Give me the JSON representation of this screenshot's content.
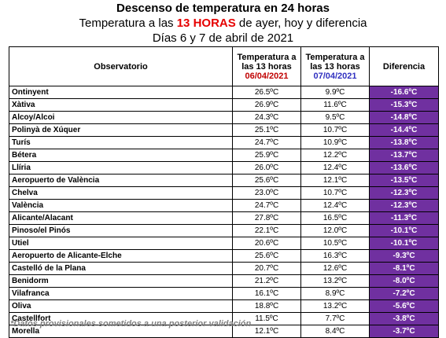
{
  "header": {
    "title": "Descenso de temperatura en 24 horas",
    "subtitle_pre": "Temperatura a las ",
    "subtitle_highlight": "13 HORAS",
    "subtitle_post": " de ayer, hoy y diferencia",
    "date_line": "Días 6 y 7 de abril de 2021",
    "highlight_color": "#e60000"
  },
  "table": {
    "columns": {
      "observatorio": "Observatorio",
      "temp_line1": "Temperatura a",
      "temp_line2": "las 13 horas",
      "date1": "06/04/2021",
      "date2": "07/04/2021",
      "diferencia": "Diferencia"
    },
    "diff_color": "#7030a0",
    "rows": [
      {
        "name": "Ontinyent",
        "t1": "26.5ºC",
        "t2": "9.9ºC",
        "diff": "-16.6ºC"
      },
      {
        "name": "Xàtiva",
        "t1": "26.9ºC",
        "t2": "11.6ºC",
        "diff": "-15.3ºC"
      },
      {
        "name": "Alcoy/Alcoi",
        "t1": "24.3ºC",
        "t2": "9.5ºC",
        "diff": "-14.8ºC"
      },
      {
        "name": "Polinyà de Xúquer",
        "t1": "25.1ºC",
        "t2": "10.7ºC",
        "diff": "-14.4ºC"
      },
      {
        "name": "Turís",
        "t1": "24.7ºC",
        "t2": "10.9ºC",
        "diff": "-13.8ºC"
      },
      {
        "name": "Bétera",
        "t1": "25.9ºC",
        "t2": "12.2ºC",
        "diff": "-13.7ºC"
      },
      {
        "name": "Llíria",
        "t1": "26.0ºC",
        "t2": "12.4ºC",
        "diff": "-13.6ºC"
      },
      {
        "name": "Aeropuerto de València",
        "t1": "25.6ºC",
        "t2": "12.1ºC",
        "diff": "-13.5ºC"
      },
      {
        "name": "Chelva",
        "t1": "23.0ºC",
        "t2": "10.7ºC",
        "diff": "-12.3ºC"
      },
      {
        "name": "València",
        "t1": "24.7ºC",
        "t2": "12.4ºC",
        "diff": "-12.3ºC"
      },
      {
        "name": "Alicante/Alacant",
        "t1": "27.8ºC",
        "t2": "16.5ºC",
        "diff": "-11.3ºC"
      },
      {
        "name": "Pinoso/el Pinós",
        "t1": "22.1ºC",
        "t2": "12.0ºC",
        "diff": "-10.1ºC"
      },
      {
        "name": "Utiel",
        "t1": "20.6ºC",
        "t2": "10.5ºC",
        "diff": "-10.1ºC"
      },
      {
        "name": "Aeropuerto de Alicante-Elche",
        "t1": "25.6ºC",
        "t2": "16.3ºC",
        "diff": "-9.3ºC"
      },
      {
        "name": "Castelló de la Plana",
        "t1": "20.7ºC",
        "t2": "12.6ºC",
        "diff": "-8.1ºC"
      },
      {
        "name": "Benidorm",
        "t1": "21.2ºC",
        "t2": "13.2ºC",
        "diff": "-8.0ºC"
      },
      {
        "name": "Vilafranca",
        "t1": "16.1ºC",
        "t2": "8.9ºC",
        "diff": "-7.2ºC"
      },
      {
        "name": "Oliva",
        "t1": "18.8ºC",
        "t2": "13.2ºC",
        "diff": "-5.6ºC"
      },
      {
        "name": "Castellfort",
        "t1": "11.5ºC",
        "t2": "7.7ºC",
        "diff": "-3.8ºC"
      },
      {
        "name": "Morella",
        "t1": "12.1ºC",
        "t2": "8.4ºC",
        "diff": "-3.7ºC"
      }
    ]
  },
  "footnote": "*Datos provisionales sometidos a una posterior validación"
}
